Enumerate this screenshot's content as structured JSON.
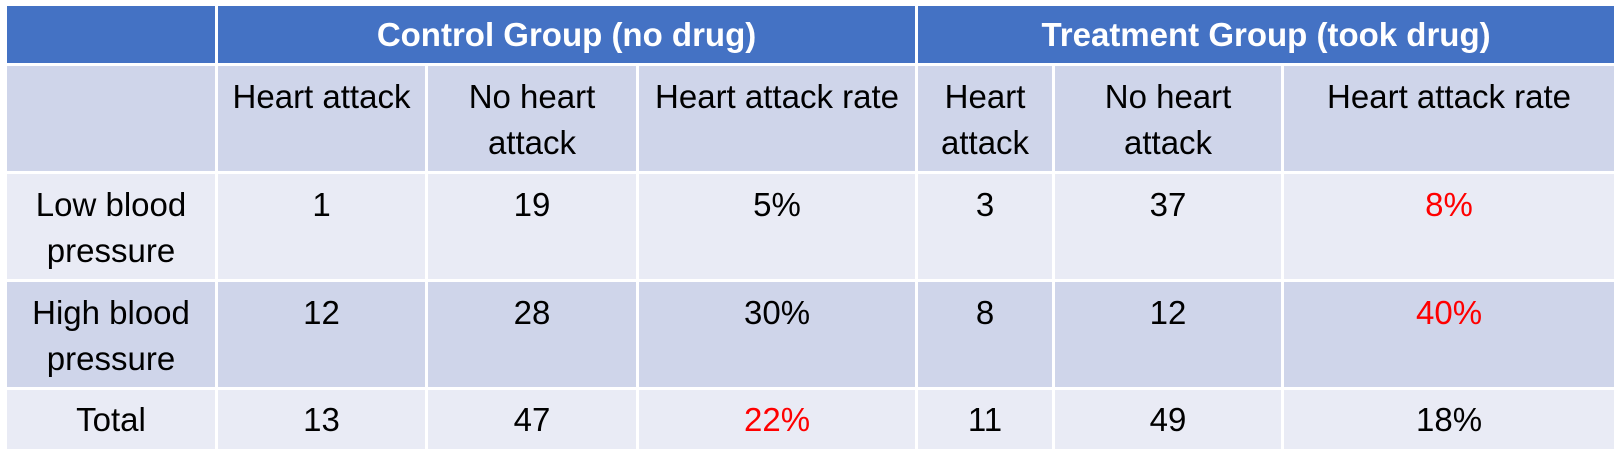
{
  "groups": {
    "control": "Control Group (no drug)",
    "treatment": "Treatment Group (took drug)"
  },
  "columns": [
    "Heart attack",
    "No heart attack",
    "Heart attack rate",
    "Heart attack",
    "No heart attack",
    "Heart attack rate"
  ],
  "rows": [
    {
      "label": "Low blood pressure",
      "cells": [
        "1",
        "19",
        "5%",
        "3",
        "37",
        "8%"
      ]
    },
    {
      "label": "High blood pressure",
      "cells": [
        "12",
        "28",
        "30%",
        "8",
        "12",
        "40%"
      ]
    },
    {
      "label": "Total",
      "cells": [
        "13",
        "47",
        "22%",
        "11",
        "49",
        "18%"
      ]
    }
  ],
  "highlight_color": "#ff0000",
  "header_color": "#4472c4"
}
